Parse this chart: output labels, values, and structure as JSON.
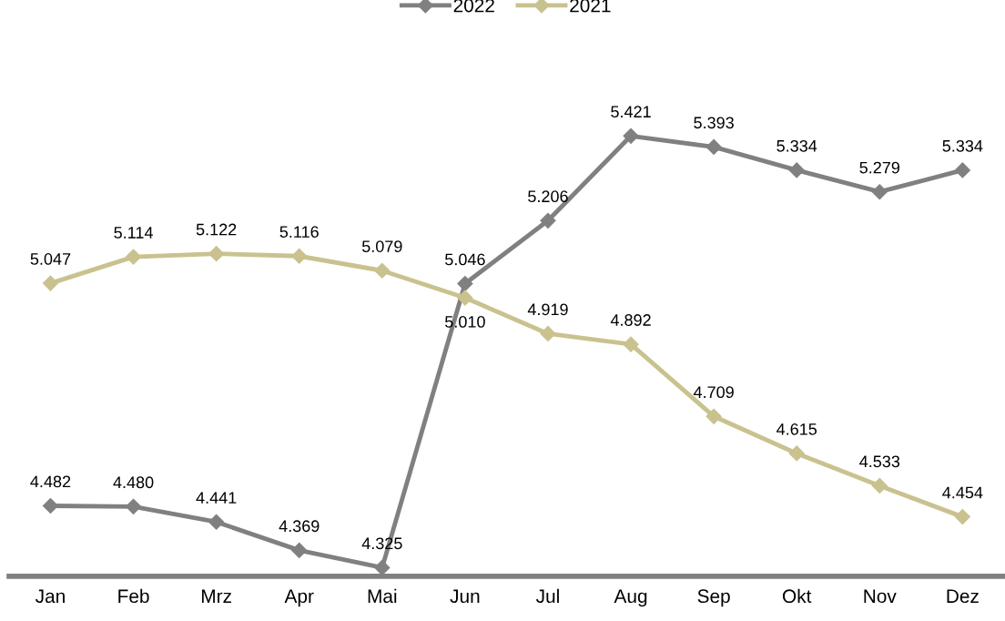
{
  "chart_data": {
    "type": "line",
    "categories": [
      "Jan",
      "Feb",
      "Mrz",
      "Apr",
      "Mai",
      "Jun",
      "Jul",
      "Aug",
      "Sep",
      "Okt",
      "Nov",
      "Dez"
    ],
    "series": [
      {
        "name": "2022",
        "color": "#808080",
        "values": [
          4.482,
          4.48,
          4.441,
          4.369,
          4.325,
          5.046,
          5.206,
          5.421,
          5.393,
          5.334,
          5.279,
          5.334
        ],
        "value_labels": [
          "4.482",
          "4.480",
          "4.441",
          "4.369",
          "4.325",
          "5.046",
          "5.206",
          "5.421",
          "5.393",
          "5.334",
          "5.279",
          "5.334"
        ]
      },
      {
        "name": "2021",
        "color": "#c9c28f",
        "values": [
          5.047,
          5.114,
          5.122,
          5.116,
          5.079,
          5.01,
          4.919,
          4.892,
          4.709,
          4.615,
          4.533,
          4.454
        ],
        "value_labels": [
          "5.047",
          "5.114",
          "5.122",
          "5.116",
          "5.079",
          "5.010",
          "4.919",
          "4.892",
          "4.709",
          "4.615",
          "4.533",
          "4.454"
        ]
      }
    ],
    "legend": "top",
    "marker": "diamond",
    "line_style": "solid",
    "grid": false
  }
}
